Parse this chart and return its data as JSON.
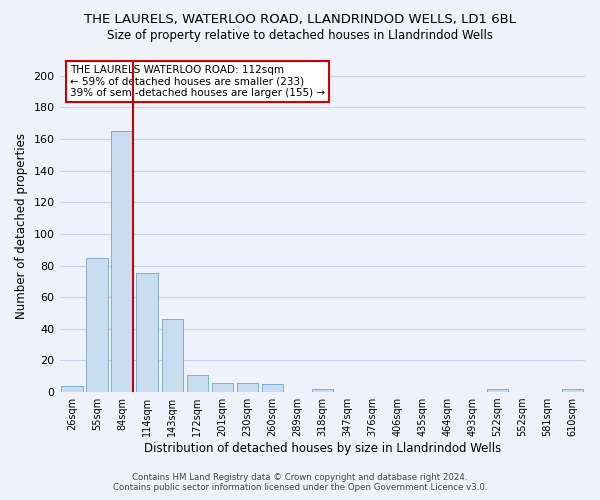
{
  "title_line1": "THE LAURELS, WATERLOO ROAD, LLANDRINDOD WELLS, LD1 6BL",
  "title_line2": "Size of property relative to detached houses in Llandrindod Wells",
  "xlabel": "Distribution of detached houses by size in Llandrindod Wells",
  "ylabel": "Number of detached properties",
  "bar_labels": [
    "26sqm",
    "55sqm",
    "84sqm",
    "114sqm",
    "143sqm",
    "172sqm",
    "201sqm",
    "230sqm",
    "260sqm",
    "289sqm",
    "318sqm",
    "347sqm",
    "376sqm",
    "406sqm",
    "435sqm",
    "464sqm",
    "493sqm",
    "522sqm",
    "552sqm",
    "581sqm",
    "610sqm"
  ],
  "bar_heights": [
    4,
    85,
    165,
    75,
    46,
    11,
    6,
    6,
    5,
    0,
    2,
    0,
    0,
    0,
    0,
    0,
    0,
    2,
    0,
    0,
    2
  ],
  "bar_color": "#c8ddf0",
  "bar_edge_color": "#7faed4",
  "vline_color": "#cc0000",
  "ylim": [
    0,
    210
  ],
  "yticks": [
    0,
    20,
    40,
    60,
    80,
    100,
    120,
    140,
    160,
    180,
    200
  ],
  "annotation_title": "THE LAURELS WATERLOO ROAD: 112sqm",
  "annotation_line1": "← 59% of detached houses are smaller (233)",
  "annotation_line2": "39% of semi-detached houses are larger (155) →",
  "footer_line1": "Contains HM Land Registry data © Crown copyright and database right 2024.",
  "footer_line2": "Contains public sector information licensed under the Open Government Licence v3.0.",
  "bg_color": "#edf2fb",
  "grid_color": "#c8d4e8"
}
